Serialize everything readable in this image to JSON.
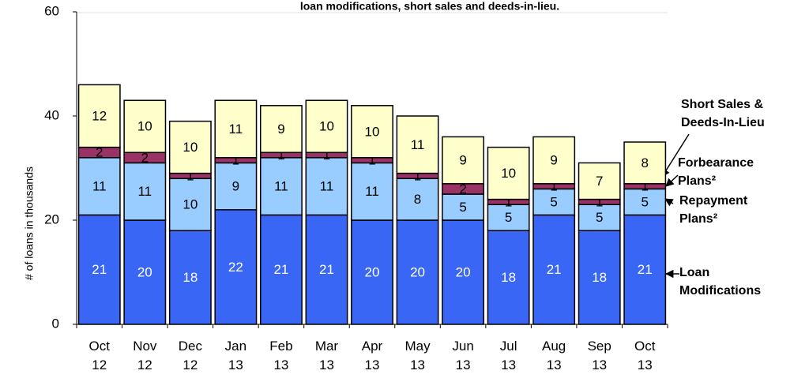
{
  "chart_data": {
    "type": "stacked_bar",
    "title": "loan modifications, short sales and deeds-in-lieu.",
    "y_label": "# of loans in thousands",
    "categories": [
      "Oct 12",
      "Nov 12",
      "Dec 12",
      "Jan 13",
      "Feb 13",
      "Mar 13",
      "Apr 13",
      "May 13",
      "Jun 13",
      "Jul 13",
      "Aug 13",
      "Sep 13",
      "Oct 13"
    ],
    "series": [
      {
        "name": "Loan Modifications",
        "color": "#3a66f5",
        "label_color": "#ffffff",
        "values": [
          21,
          20,
          18,
          22,
          21,
          21,
          20,
          20,
          20,
          18,
          21,
          18,
          21
        ]
      },
      {
        "name": "Repayment Plans²",
        "color": "#99ccff",
        "label_color": "#000000",
        "values": [
          11,
          11,
          10,
          9,
          11,
          11,
          11,
          8,
          5,
          5,
          5,
          5,
          5
        ]
      },
      {
        "name": "Forbearance Plans²",
        "color": "#993366",
        "label_color": "#000000",
        "values": [
          2,
          2,
          1,
          1,
          1,
          1,
          1,
          1,
          2,
          1,
          1,
          1,
          1
        ]
      },
      {
        "name": "Short Sales & Deeds-In-Lieu",
        "color": "#ffffcc",
        "label_color": "#000000",
        "values": [
          12,
          10,
          10,
          11,
          9,
          10,
          10,
          11,
          9,
          10,
          9,
          7,
          8
        ]
      }
    ],
    "ylim": [
      0,
      60
    ],
    "yticks": [
      0,
      20,
      40,
      60
    ],
    "grid": false
  }
}
